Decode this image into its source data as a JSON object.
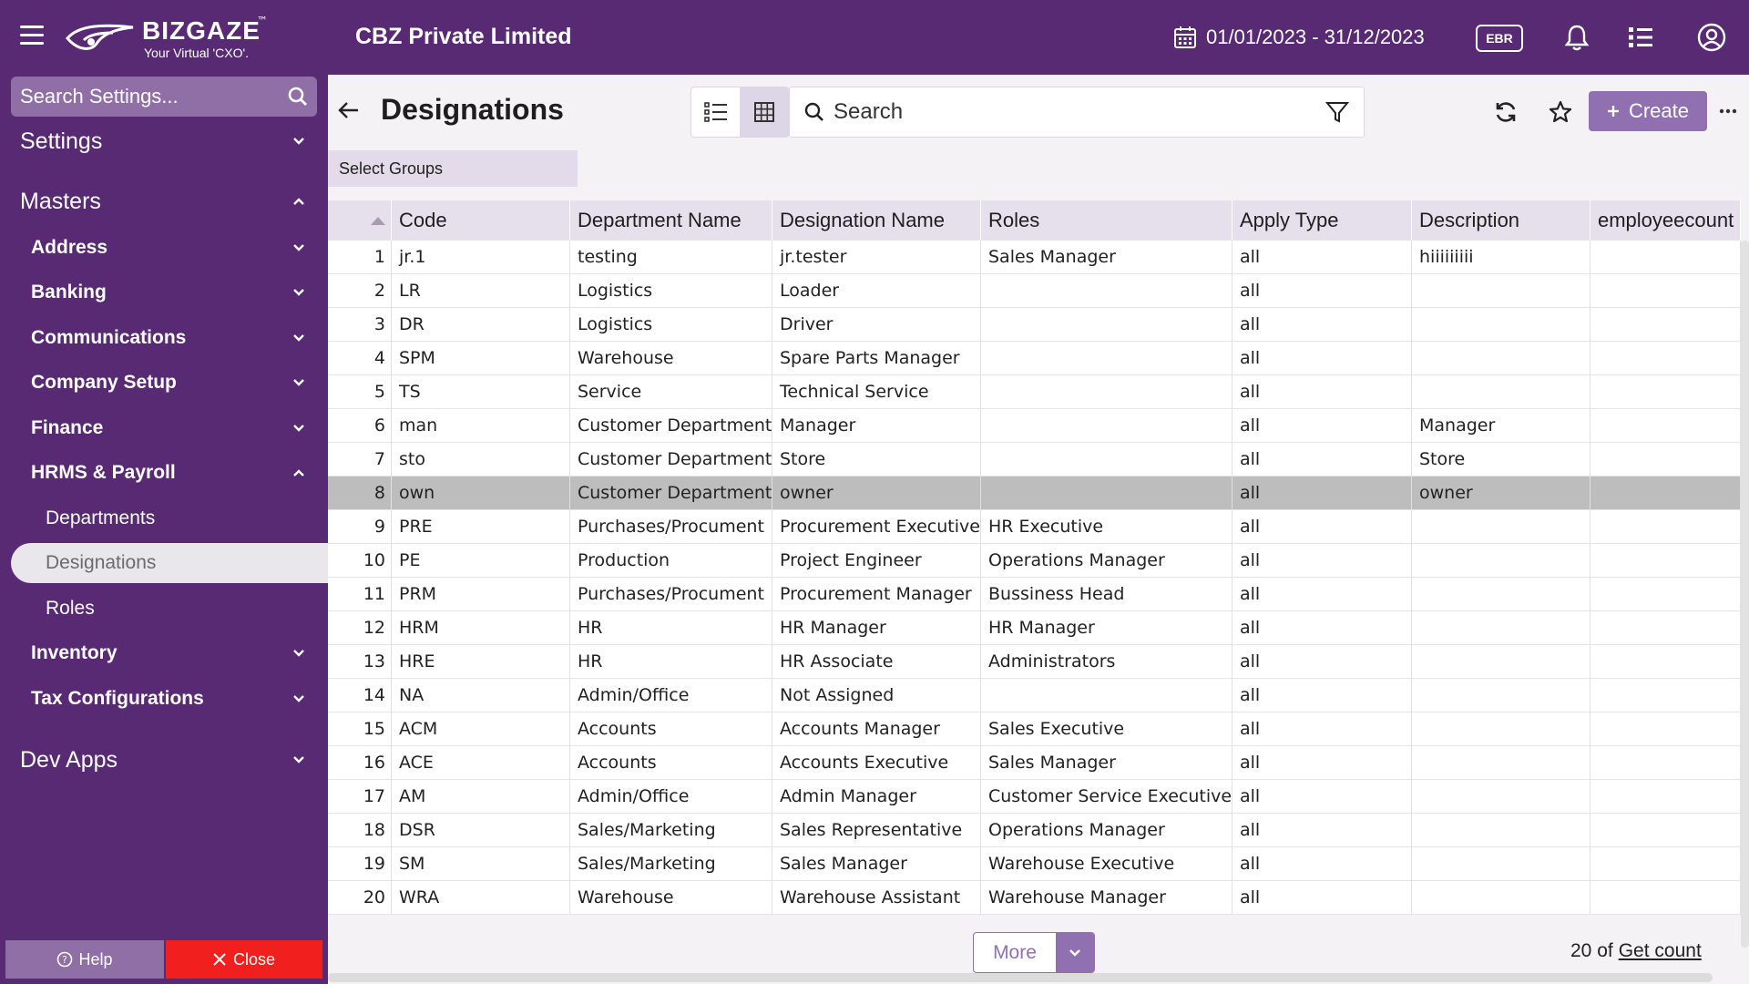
{
  "topbar": {
    "logo_name": "BIZGAZE",
    "logo_tm": "™",
    "logo_tagline": "Your Virtual 'CXO'.",
    "company": "CBZ Private Limited",
    "date_range": "01/01/2023 - 31/12/2023",
    "badge": "EBR"
  },
  "sidebar": {
    "search_placeholder": "Search Settings...",
    "settings": "Settings",
    "masters": "Masters",
    "items": [
      "Address",
      "Banking",
      "Communications",
      "Company Setup",
      "Finance",
      "HRMS & Payroll"
    ],
    "hrms_children": [
      "Departments",
      "Designations",
      "Roles"
    ],
    "items_after": [
      "Inventory",
      "Tax Configurations"
    ],
    "dev_apps": "Dev Apps",
    "help": "Help",
    "close": "Close"
  },
  "header": {
    "title": "Designations",
    "search_placeholder": "Search",
    "create": "Create",
    "select_groups": "Select Groups"
  },
  "table": {
    "columns": [
      "Code",
      "Department Name",
      "Designation Name",
      "Roles",
      "Apply Type",
      "Description",
      "employeecount"
    ],
    "highlighted_row": 8,
    "rows": [
      [
        "1",
        "jr.1",
        "testing",
        "jr.tester",
        "Sales Manager",
        "all",
        "hiiiiiiiii",
        ""
      ],
      [
        "2",
        "LR",
        "Logistics",
        "Loader",
        "",
        "all",
        "",
        ""
      ],
      [
        "3",
        "DR",
        "Logistics",
        "Driver",
        "",
        "all",
        "",
        ""
      ],
      [
        "4",
        "SPM",
        "Warehouse",
        "Spare Parts Manager",
        "",
        "all",
        "",
        ""
      ],
      [
        "5",
        "TS",
        "Service",
        "Technical Service",
        "",
        "all",
        "",
        ""
      ],
      [
        "6",
        "man",
        "Customer Department",
        "Manager",
        "",
        "all",
        "Manager",
        ""
      ],
      [
        "7",
        "sto",
        "Customer Department",
        "Store",
        "",
        "all",
        "Store",
        ""
      ],
      [
        "8",
        "own",
        "Customer Department",
        "owner",
        "",
        "all",
        "owner",
        ""
      ],
      [
        "9",
        "PRE",
        "Purchases/Procument",
        "Procurement Executive",
        "HR Executive",
        "all",
        "",
        ""
      ],
      [
        "10",
        "PE",
        "Production",
        "Project Engineer",
        "Operations Manager",
        "all",
        "",
        ""
      ],
      [
        "11",
        "PRM",
        "Purchases/Procument",
        "Procurement Manager",
        "Bussiness Head",
        "all",
        "",
        ""
      ],
      [
        "12",
        "HRM",
        "HR",
        "HR Manager",
        "HR Manager",
        "all",
        "",
        ""
      ],
      [
        "13",
        "HRE",
        "HR",
        "HR Associate",
        "Administrators",
        "all",
        "",
        ""
      ],
      [
        "14",
        "NA",
        "Admin/Office",
        "Not Assigned",
        "",
        "all",
        "",
        ""
      ],
      [
        "15",
        "ACM",
        "Accounts",
        "Accounts Manager",
        "Sales Executive",
        "all",
        "",
        ""
      ],
      [
        "16",
        "ACE",
        "Accounts",
        "Accounts Executive",
        "Sales Manager",
        "all",
        "",
        ""
      ],
      [
        "17",
        "AM",
        "Admin/Office",
        "Admin Manager",
        "Customer Service Executive",
        "all",
        "",
        ""
      ],
      [
        "18",
        "DSR",
        "Sales/Marketing",
        "Sales Representative",
        "Operations Manager",
        "all",
        "",
        ""
      ],
      [
        "19",
        "SM",
        "Sales/Marketing",
        "Sales Manager",
        "Warehouse Executive",
        "all",
        "",
        ""
      ],
      [
        "20",
        "WRA",
        "Warehouse",
        "Warehouse Assistant",
        "Warehouse Manager",
        "all",
        "",
        ""
      ]
    ]
  },
  "footer": {
    "more": "More",
    "count_prefix": "20 of",
    "get_count": "Get count"
  },
  "colors": {
    "brand": "#582a73",
    "accent": "#9070b0",
    "close": "#f21f1f",
    "highlight_row": "#bdbdbd"
  }
}
